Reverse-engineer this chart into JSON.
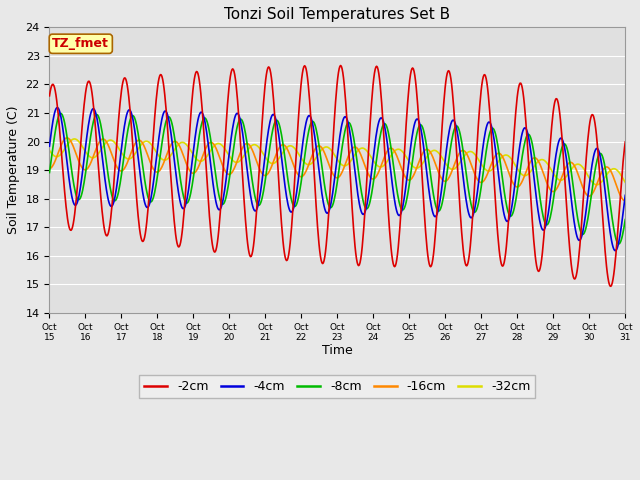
{
  "title": "Tonzi Soil Temperatures Set B",
  "xlabel": "Time",
  "ylabel": "Soil Temperature (C)",
  "ylim": [
    14.0,
    24.0
  ],
  "yticks": [
    14.0,
    15.0,
    16.0,
    17.0,
    18.0,
    19.0,
    20.0,
    21.0,
    22.0,
    23.0,
    24.0
  ],
  "xtick_labels": [
    "Oct 15",
    "Oct 16",
    "Oct 17",
    "Oct 18",
    "Oct 19",
    "Oct 20",
    "Oct 21",
    "Oct 22",
    "Oct 23",
    "Oct 24",
    "Oct 25",
    "Oct 26",
    "Oct 27",
    "Oct 28",
    "Oct 29",
    "Oct 30",
    "Oct 31"
  ],
  "series": {
    "-2cm": {
      "color": "#dd0000",
      "linewidth": 1.2
    },
    "-4cm": {
      "color": "#0000dd",
      "linewidth": 1.2
    },
    "-8cm": {
      "color": "#00bb00",
      "linewidth": 1.2
    },
    "-16cm": {
      "color": "#ff8800",
      "linewidth": 1.2
    },
    "-32cm": {
      "color": "#dddd00",
      "linewidth": 1.2
    }
  },
  "annotation_text": "TZ_fmet",
  "annotation_bg": "#ffffaa",
  "annotation_border": "#aa6600",
  "fig_bg_color": "#e8e8e8",
  "plot_bg_color": "#e0e0e0",
  "title_fontsize": 11,
  "axis_fontsize": 9,
  "tick_fontsize": 8,
  "legend_fontsize": 9
}
